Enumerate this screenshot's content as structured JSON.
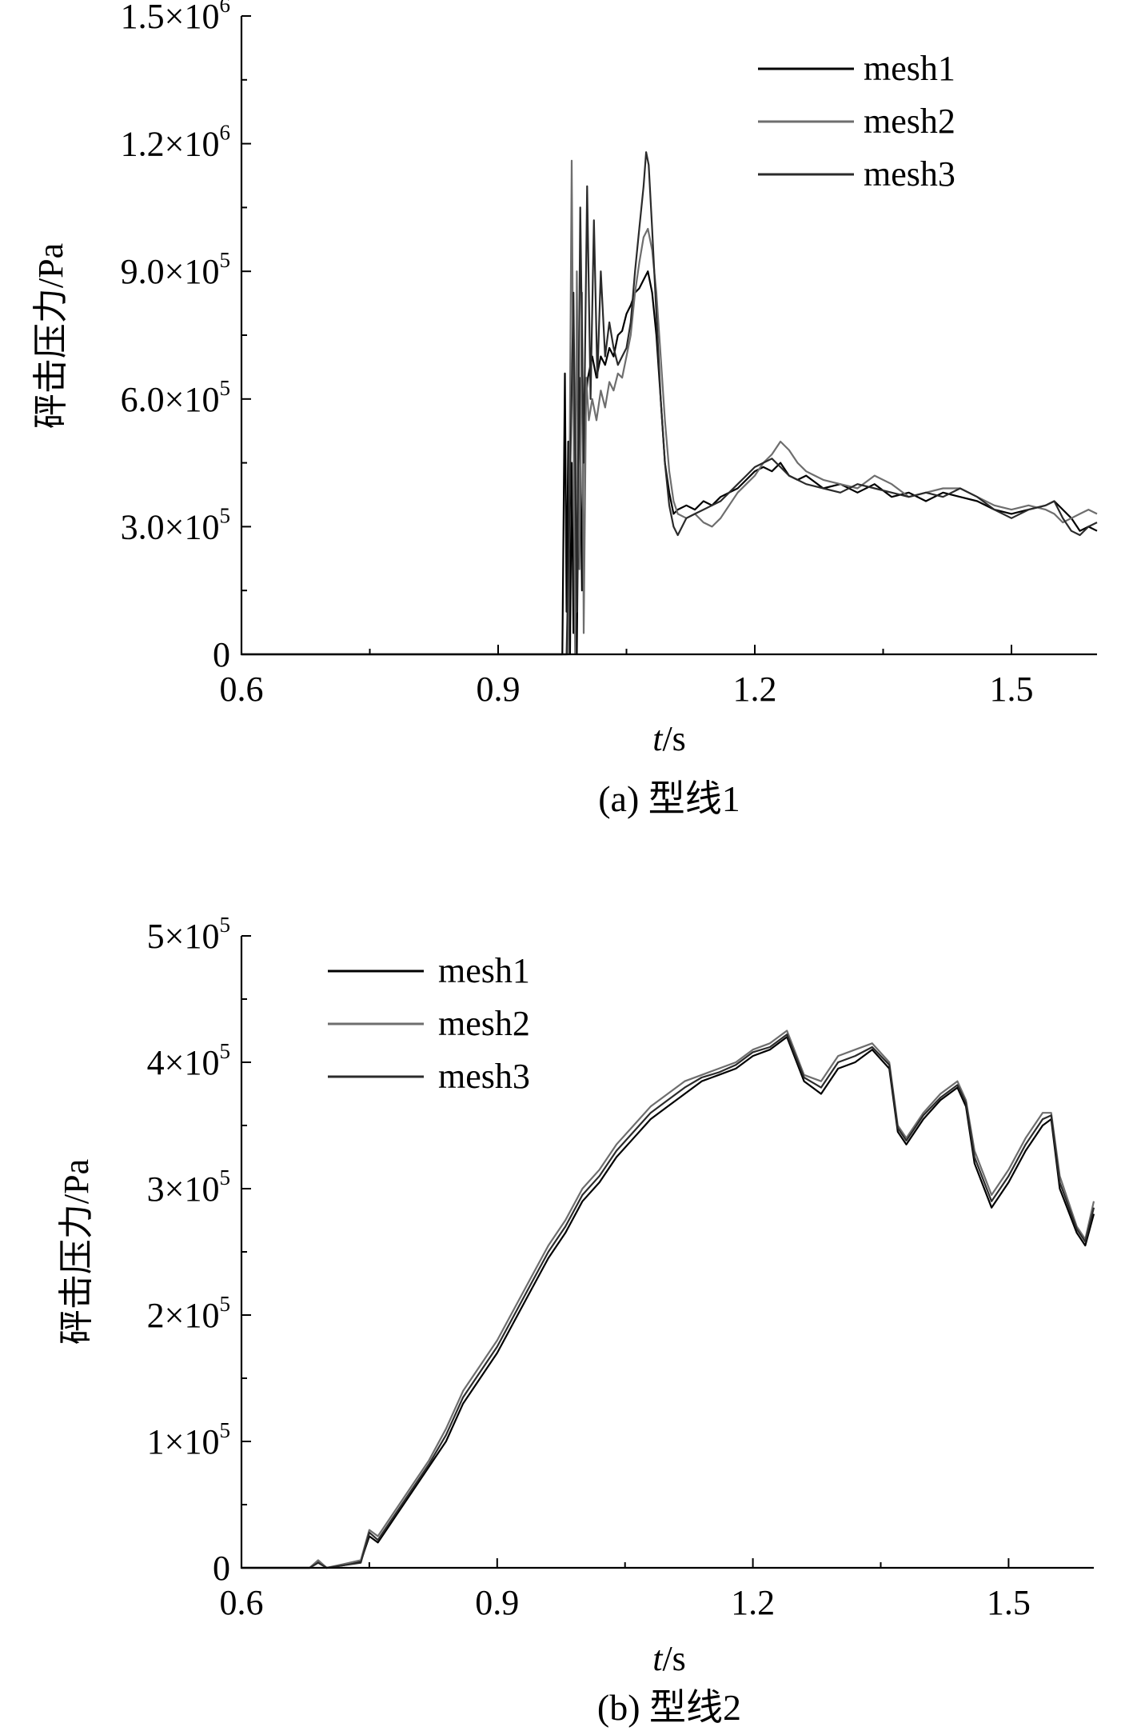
{
  "chart_data": [
    {
      "type": "line",
      "title": "",
      "caption": "(a) 型线1",
      "xlabel_italic": "t",
      "xlabel_rest": "/s",
      "ylabel": "砰击压力/Pa",
      "xlim": [
        0.6,
        1.6
      ],
      "ylim": [
        0,
        1500000
      ],
      "xticks": [
        {
          "value": 0.6,
          "label": "0.6"
        },
        {
          "value": 0.9,
          "label": "0.9"
        },
        {
          "value": 1.2,
          "label": "1.2"
        },
        {
          "value": 1.5,
          "label": "1.5"
        }
      ],
      "yticks": [
        {
          "value": 0,
          "base": "0",
          "exp": ""
        },
        {
          "value": 300000,
          "base": "3.0×10",
          "exp": "5"
        },
        {
          "value": 600000,
          "base": "6.0×10",
          "exp": "5"
        },
        {
          "value": 900000,
          "base": "9.0×10",
          "exp": "5"
        },
        {
          "value": 1200000,
          "base": "1.2×10",
          "exp": "6"
        },
        {
          "value": 1500000,
          "base": "1.5×10",
          "exp": "6"
        }
      ],
      "legend_position": "top-right",
      "series": [
        {
          "name": "mesh1",
          "color": "#000000",
          "x": [
            0.6,
            0.96,
            0.975,
            0.978,
            0.98,
            0.982,
            0.984,
            0.986,
            0.988,
            0.99,
            0.992,
            0.995,
            0.998,
            1.0,
            1.005,
            1.01,
            1.015,
            1.02,
            1.025,
            1.03,
            1.035,
            1.04,
            1.045,
            1.05,
            1.055,
            1.06,
            1.065,
            1.07,
            1.075,
            1.08,
            1.085,
            1.09,
            1.095,
            1.1,
            1.105,
            1.11,
            1.12,
            1.13,
            1.14,
            1.15,
            1.16,
            1.17,
            1.18,
            1.19,
            1.2,
            1.21,
            1.22,
            1.23,
            1.24,
            1.25,
            1.26,
            1.28,
            1.3,
            1.32,
            1.34,
            1.36,
            1.38,
            1.4,
            1.42,
            1.44,
            1.46,
            1.48,
            1.5,
            1.52,
            1.54,
            1.55,
            1.56,
            1.57,
            1.58,
            1.59,
            1.6
          ],
          "y": [
            0,
            0,
            0,
            660000,
            100000,
            500000,
            0,
            450000,
            50000,
            500000,
            0,
            650000,
            150000,
            550000,
            650000,
            700000,
            650000,
            700000,
            680000,
            720000,
            700000,
            750000,
            760000,
            800000,
            820000,
            850000,
            860000,
            880000,
            900000,
            850000,
            750000,
            600000,
            450000,
            380000,
            330000,
            340000,
            350000,
            340000,
            360000,
            350000,
            370000,
            380000,
            390000,
            410000,
            430000,
            440000,
            430000,
            450000,
            420000,
            410000,
            420000,
            390000,
            400000,
            380000,
            400000,
            370000,
            380000,
            360000,
            380000,
            370000,
            360000,
            340000,
            330000,
            340000,
            350000,
            360000,
            340000,
            320000,
            290000,
            300000,
            290000
          ]
        },
        {
          "name": "mesh2",
          "color": "#6e6e6e",
          "x": [
            0.6,
            0.97,
            0.982,
            0.986,
            0.99,
            0.992,
            0.995,
            0.998,
            1.0,
            1.003,
            1.006,
            1.01,
            1.015,
            1.02,
            1.025,
            1.03,
            1.035,
            1.04,
            1.045,
            1.05,
            1.055,
            1.06,
            1.065,
            1.07,
            1.075,
            1.08,
            1.085,
            1.09,
            1.095,
            1.1,
            1.105,
            1.11,
            1.12,
            1.13,
            1.14,
            1.15,
            1.16,
            1.17,
            1.18,
            1.19,
            1.2,
            1.21,
            1.22,
            1.23,
            1.24,
            1.25,
            1.26,
            1.28,
            1.3,
            1.32,
            1.34,
            1.36,
            1.38,
            1.4,
            1.42,
            1.44,
            1.46,
            1.48,
            1.5,
            1.52,
            1.54,
            1.55,
            1.56,
            1.57,
            1.58,
            1.59,
            1.6
          ],
          "y": [
            0,
            0,
            0,
            1160000,
            0,
            900000,
            200000,
            850000,
            50000,
            650000,
            550000,
            600000,
            550000,
            620000,
            580000,
            640000,
            620000,
            660000,
            650000,
            700000,
            750000,
            850000,
            920000,
            980000,
            1000000,
            950000,
            850000,
            700000,
            550000,
            430000,
            360000,
            330000,
            320000,
            330000,
            310000,
            300000,
            320000,
            350000,
            380000,
            400000,
            420000,
            450000,
            470000,
            500000,
            480000,
            450000,
            430000,
            410000,
            400000,
            390000,
            420000,
            400000,
            370000,
            380000,
            390000,
            390000,
            370000,
            350000,
            340000,
            350000,
            340000,
            330000,
            310000,
            320000,
            330000,
            340000,
            330000
          ]
        },
        {
          "name": "mesh3",
          "color": "#2b2b2b",
          "x": [
            0.6,
            0.965,
            0.98,
            0.984,
            0.988,
            0.992,
            0.996,
            1.0,
            1.004,
            1.008,
            1.012,
            1.016,
            1.02,
            1.025,
            1.03,
            1.035,
            1.04,
            1.045,
            1.05,
            1.055,
            1.06,
            1.065,
            1.07,
            1.073,
            1.076,
            1.08,
            1.085,
            1.09,
            1.095,
            1.1,
            1.105,
            1.11,
            1.12,
            1.13,
            1.14,
            1.15,
            1.16,
            1.17,
            1.18,
            1.19,
            1.2,
            1.21,
            1.22,
            1.23,
            1.24,
            1.25,
            1.26,
            1.28,
            1.3,
            1.32,
            1.34,
            1.36,
            1.38,
            1.4,
            1.42,
            1.44,
            1.46,
            1.48,
            1.5,
            1.52,
            1.54,
            1.55,
            1.56,
            1.57,
            1.58,
            1.59,
            1.6
          ],
          "y": [
            0,
            0,
            0,
            400000,
            850000,
            100000,
            1050000,
            450000,
            1100000,
            600000,
            1020000,
            650000,
            900000,
            700000,
            780000,
            720000,
            680000,
            700000,
            720000,
            780000,
            900000,
            1000000,
            1100000,
            1180000,
            1150000,
            1000000,
            800000,
            600000,
            450000,
            350000,
            300000,
            280000,
            320000,
            330000,
            340000,
            350000,
            360000,
            380000,
            400000,
            420000,
            440000,
            450000,
            460000,
            440000,
            420000,
            410000,
            400000,
            390000,
            380000,
            400000,
            390000,
            380000,
            370000,
            380000,
            370000,
            390000,
            370000,
            340000,
            320000,
            340000,
            350000,
            360000,
            320000,
            290000,
            280000,
            300000,
            310000
          ]
        }
      ]
    },
    {
      "type": "line",
      "title": "",
      "caption": "(b) 型线2",
      "xlabel_italic": "t",
      "xlabel_rest": "/s",
      "ylabel": "砰击压力/Pa",
      "xlim": [
        0.6,
        1.6
      ],
      "ylim": [
        0,
        500000
      ],
      "xticks": [
        {
          "value": 0.6,
          "label": "0.6"
        },
        {
          "value": 0.9,
          "label": "0.9"
        },
        {
          "value": 1.2,
          "label": "1.2"
        },
        {
          "value": 1.5,
          "label": "1.5"
        }
      ],
      "yticks": [
        {
          "value": 0,
          "base": "0",
          "exp": ""
        },
        {
          "value": 100000,
          "base": "1×10",
          "exp": "5"
        },
        {
          "value": 200000,
          "base": "2×10",
          "exp": "5"
        },
        {
          "value": 300000,
          "base": "3×10",
          "exp": "5"
        },
        {
          "value": 400000,
          "base": "4×10",
          "exp": "5"
        },
        {
          "value": 500000,
          "base": "5×10",
          "exp": "5"
        }
      ],
      "legend_position": "top-left",
      "series": [
        {
          "name": "mesh1",
          "color": "#000000",
          "x": [
            0.6,
            0.68,
            0.69,
            0.7,
            0.72,
            0.74,
            0.75,
            0.76,
            0.78,
            0.8,
            0.82,
            0.84,
            0.86,
            0.88,
            0.9,
            0.92,
            0.94,
            0.96,
            0.98,
            1.0,
            1.02,
            1.04,
            1.06,
            1.08,
            1.1,
            1.12,
            1.14,
            1.16,
            1.18,
            1.2,
            1.22,
            1.24,
            1.26,
            1.28,
            1.3,
            1.32,
            1.34,
            1.36,
            1.37,
            1.38,
            1.4,
            1.42,
            1.44,
            1.45,
            1.46,
            1.48,
            1.5,
            1.52,
            1.54,
            1.55,
            1.56,
            1.58,
            1.59,
            1.6
          ],
          "y": [
            0,
            0,
            5000,
            0,
            2000,
            5000,
            25000,
            20000,
            40000,
            60000,
            80000,
            100000,
            130000,
            150000,
            170000,
            195000,
            220000,
            245000,
            265000,
            290000,
            305000,
            325000,
            340000,
            355000,
            365000,
            375000,
            385000,
            390000,
            395000,
            405000,
            410000,
            420000,
            385000,
            375000,
            395000,
            400000,
            410000,
            395000,
            345000,
            335000,
            355000,
            370000,
            380000,
            365000,
            320000,
            285000,
            305000,
            330000,
            350000,
            355000,
            300000,
            265000,
            255000,
            280000
          ]
        },
        {
          "name": "mesh2",
          "color": "#6e6e6e",
          "x": [
            0.6,
            0.68,
            0.69,
            0.7,
            0.72,
            0.74,
            0.75,
            0.76,
            0.78,
            0.8,
            0.82,
            0.84,
            0.86,
            0.88,
            0.9,
            0.92,
            0.94,
            0.96,
            0.98,
            1.0,
            1.02,
            1.04,
            1.06,
            1.08,
            1.1,
            1.12,
            1.14,
            1.16,
            1.18,
            1.2,
            1.22,
            1.24,
            1.26,
            1.28,
            1.3,
            1.32,
            1.34,
            1.36,
            1.37,
            1.38,
            1.4,
            1.42,
            1.44,
            1.45,
            1.46,
            1.48,
            1.5,
            1.52,
            1.54,
            1.55,
            1.56,
            1.58,
            1.59,
            1.6
          ],
          "y": [
            0,
            0,
            6000,
            0,
            3000,
            6000,
            30000,
            25000,
            45000,
            65000,
            85000,
            110000,
            140000,
            160000,
            180000,
            205000,
            230000,
            255000,
            275000,
            300000,
            315000,
            335000,
            350000,
            365000,
            375000,
            385000,
            390000,
            395000,
            400000,
            410000,
            415000,
            425000,
            390000,
            385000,
            405000,
            410000,
            415000,
            400000,
            350000,
            340000,
            360000,
            375000,
            385000,
            370000,
            330000,
            295000,
            315000,
            340000,
            360000,
            360000,
            310000,
            270000,
            260000,
            290000
          ]
        },
        {
          "name": "mesh3",
          "color": "#2b2b2b",
          "x": [
            0.6,
            0.68,
            0.69,
            0.7,
            0.72,
            0.74,
            0.75,
            0.76,
            0.78,
            0.8,
            0.82,
            0.84,
            0.86,
            0.88,
            0.9,
            0.92,
            0.94,
            0.96,
            0.98,
            1.0,
            1.02,
            1.04,
            1.06,
            1.08,
            1.1,
            1.12,
            1.14,
            1.16,
            1.18,
            1.2,
            1.22,
            1.24,
            1.26,
            1.28,
            1.3,
            1.32,
            1.34,
            1.36,
            1.37,
            1.38,
            1.4,
            1.42,
            1.44,
            1.45,
            1.46,
            1.48,
            1.5,
            1.52,
            1.54,
            1.55,
            1.56,
            1.58,
            1.59,
            1.6
          ],
          "y": [
            0,
            0,
            4000,
            0,
            2000,
            4000,
            28000,
            22000,
            42000,
            62000,
            82000,
            105000,
            135000,
            155000,
            175000,
            200000,
            225000,
            250000,
            270000,
            295000,
            310000,
            330000,
            345000,
            360000,
            370000,
            380000,
            388000,
            392000,
            398000,
            408000,
            412000,
            422000,
            388000,
            380000,
            400000,
            405000,
            412000,
            398000,
            348000,
            338000,
            358000,
            372000,
            382000,
            368000,
            325000,
            290000,
            310000,
            335000,
            355000,
            358000,
            305000,
            268000,
            258000,
            285000
          ]
        }
      ]
    }
  ]
}
